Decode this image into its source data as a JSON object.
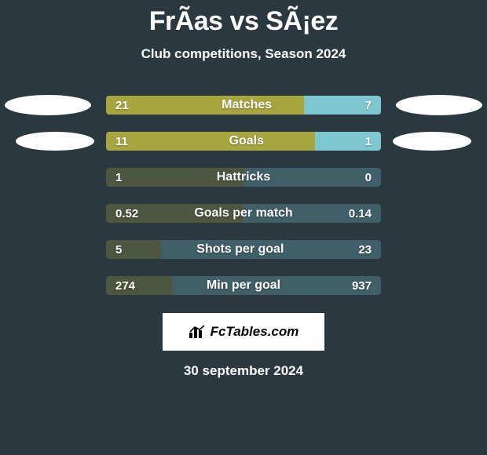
{
  "title": "FrÃ­as vs SÃ¡ez",
  "subtitle": "Club competitions, Season 2024",
  "footer_date": "30 september 2024",
  "badge_text": "FcTables.com",
  "colors": {
    "background": "#2a3840",
    "left_bar": "#a8a43e",
    "right_bar": "#7cc7d0",
    "text": "#ffffff",
    "badge_bg": "#ffffff",
    "badge_text": "#000000"
  },
  "logos": {
    "row0": true,
    "row1": true
  },
  "rows": [
    {
      "metric": "Matches",
      "left": "21",
      "right": "7",
      "left_pct": 72,
      "dim": false
    },
    {
      "metric": "Goals",
      "left": "11",
      "right": "1",
      "left_pct": 76,
      "dim": false
    },
    {
      "metric": "Hattricks",
      "left": "1",
      "right": "0",
      "left_pct": 50,
      "dim": true
    },
    {
      "metric": "Goals per match",
      "left": "0.52",
      "right": "0.14",
      "left_pct": 50,
      "dim": true
    },
    {
      "metric": "Shots per goal",
      "left": "5",
      "right": "23",
      "left_pct": 20,
      "dim": true
    },
    {
      "metric": "Min per goal",
      "left": "274",
      "right": "937",
      "left_pct": 24,
      "dim": true
    }
  ]
}
